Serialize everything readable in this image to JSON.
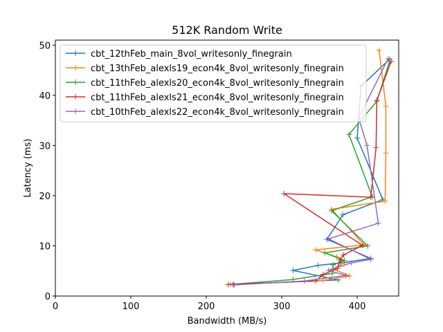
{
  "chart_data": {
    "type": "line",
    "title": "512K  Random Write",
    "xlabel": "Bandwidth (MB/s)",
    "ylabel": "Latency (ms)",
    "xlim": [
      0,
      455
    ],
    "ylim": [
      0,
      51
    ],
    "xticks": [
      0,
      100,
      200,
      300,
      400
    ],
    "yticks": [
      0,
      10,
      20,
      30,
      40,
      50
    ],
    "grid": false,
    "legend_position": "top-left",
    "marker": "+",
    "series": [
      {
        "name": "cbt_12thFeb_main_8vol_writesonly_finegrain",
        "color": "#1f77b4",
        "points": [
          [
            236,
            2.3
          ],
          [
            375,
            3.2
          ],
          [
            315,
            5.1
          ],
          [
            348,
            6.1
          ],
          [
            378,
            6.6
          ],
          [
            418,
            7.5
          ],
          [
            360,
            11.3
          ],
          [
            381,
            16.2
          ],
          [
            434,
            19.2
          ],
          [
            400,
            31.5
          ],
          [
            405,
            41.8
          ],
          [
            443,
            47.2
          ]
        ]
      },
      {
        "name": "cbt_13thFeb_alexls19_econ4k_8vol_writesonly_finegrain",
        "color": "#ff7f0e",
        "points": [
          [
            235,
            2.3
          ],
          [
            355,
            3.1
          ],
          [
            390,
            4.0
          ],
          [
            368,
            5.4
          ],
          [
            383,
            6.6
          ],
          [
            373,
            7.8
          ],
          [
            345,
            9.2
          ],
          [
            409,
            10.2
          ],
          [
            366,
            17.3
          ],
          [
            437,
            18.9
          ],
          [
            438,
            28.5
          ],
          [
            438,
            37.8
          ],
          [
            429,
            49.0
          ]
        ]
      },
      {
        "name": "cbt_11thFeb_alexls20_econ4k_8vol_writesonly_finegrain",
        "color": "#2ca02c",
        "points": [
          [
            232,
            2.3
          ],
          [
            315,
            3.3
          ],
          [
            367,
            4.5
          ],
          [
            368,
            6.2
          ],
          [
            383,
            7.1
          ],
          [
            357,
            8.6
          ],
          [
            414,
            10.0
          ],
          [
            366,
            17.0
          ],
          [
            420,
            19.8
          ],
          [
            389,
            32.2
          ],
          [
            426,
            38.8
          ],
          [
            443,
            46.8
          ]
        ]
      },
      {
        "name": "cbt_11thFeb_alexls21_econ4k_8vol_writesonly_finegrain",
        "color": "#d62728",
        "points": [
          [
            229,
            2.3
          ],
          [
            345,
            3.0
          ],
          [
            355,
            4.3
          ],
          [
            374,
            5.5
          ],
          [
            377,
            7.2
          ],
          [
            382,
            8.2
          ],
          [
            407,
            10.1
          ],
          [
            303,
            20.4
          ],
          [
            418,
            19.7
          ],
          [
            425,
            29.6
          ],
          [
            426,
            39.0
          ],
          [
            445,
            46.8
          ]
        ]
      },
      {
        "name": "cbt_10thFeb_alexls22_econ4k_8vol_writesonly_finegrain",
        "color": "#9467bd",
        "points": [
          [
            237,
            2.2
          ],
          [
            330,
            3.0
          ],
          [
            385,
            4.1
          ],
          [
            362,
            5.1
          ],
          [
            392,
            6.6
          ],
          [
            418,
            7.3
          ],
          [
            362,
            11.4
          ],
          [
            428,
            14.5
          ],
          [
            413,
            30.0
          ],
          [
            402,
            35.5
          ],
          [
            441,
            47.3
          ]
        ]
      }
    ]
  }
}
